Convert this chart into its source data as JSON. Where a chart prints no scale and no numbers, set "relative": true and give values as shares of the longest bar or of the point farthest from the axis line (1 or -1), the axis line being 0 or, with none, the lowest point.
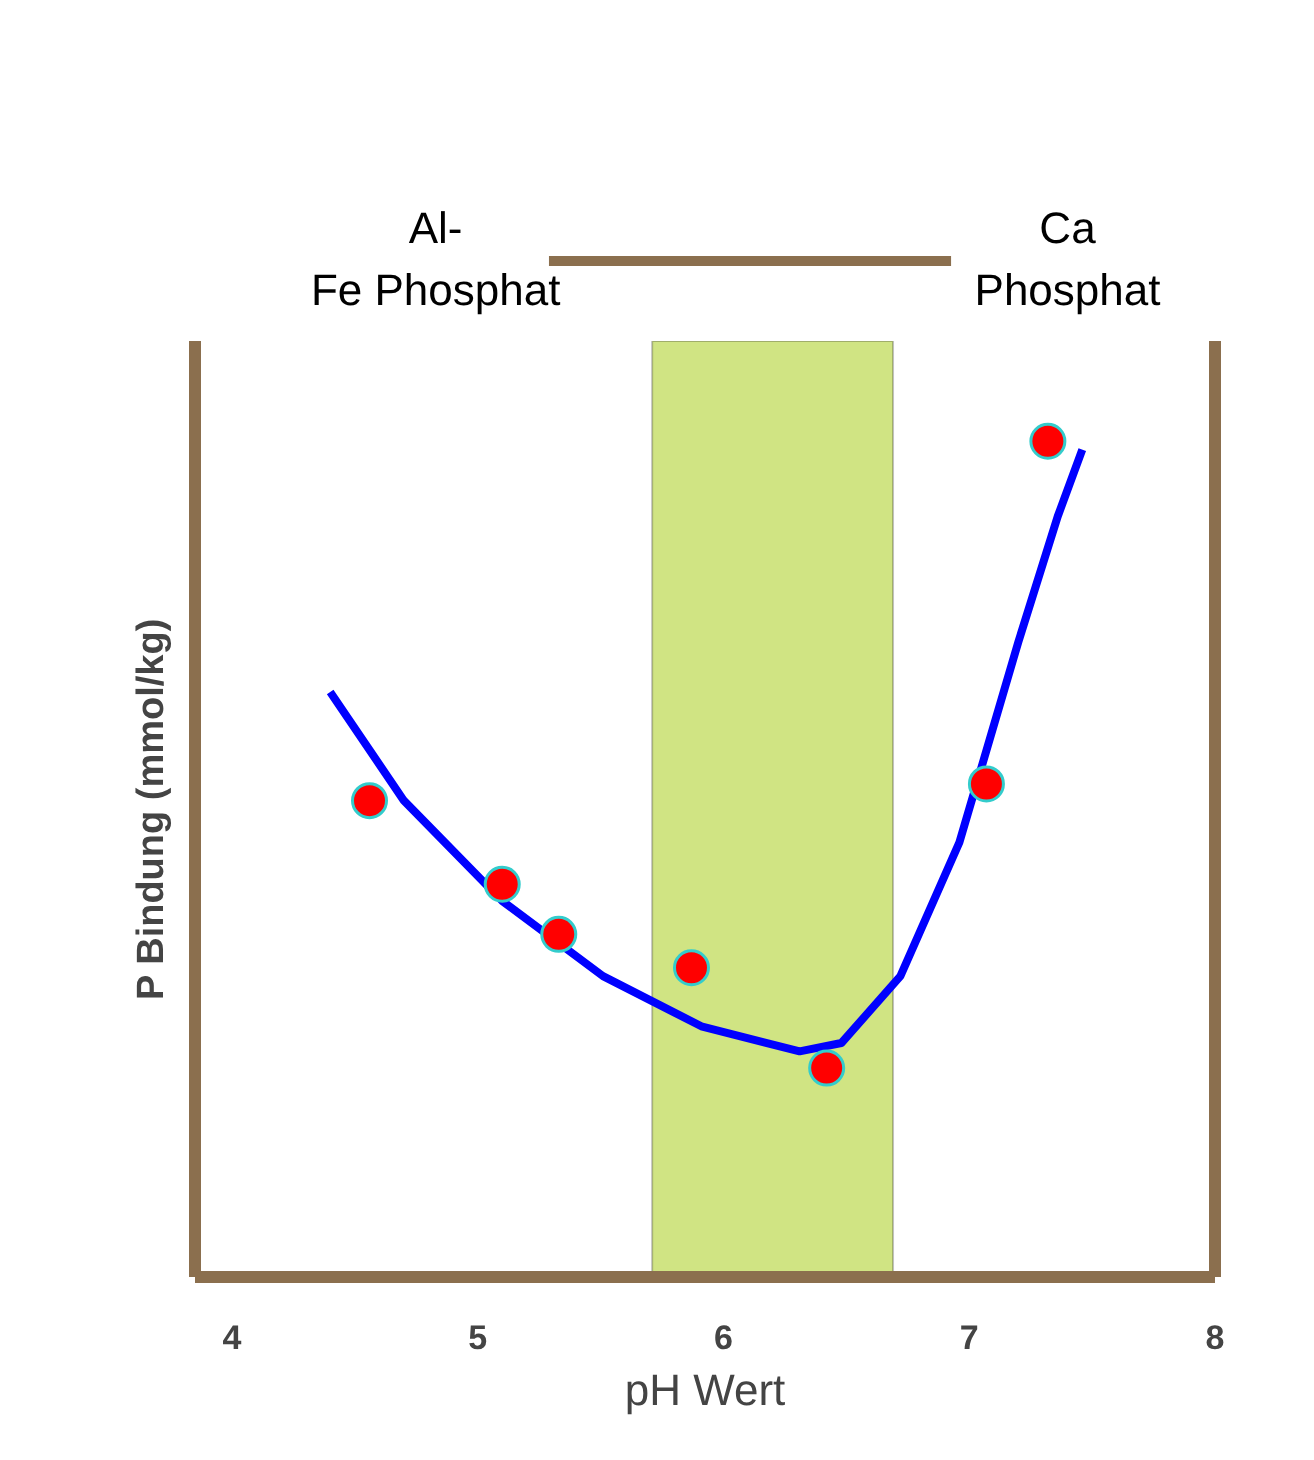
{
  "chart_data": {
    "type": "scatter",
    "xlabel": "pH Wert",
    "ylabel": "P Bindung (mmol/kg)",
    "xlim": [
      3.85,
      8.0
    ],
    "xticks": [
      4,
      5,
      6,
      7,
      8
    ],
    "relative": true,
    "grid": false,
    "annotations": [
      "Al-\nFe Phosphat",
      "Ca\nPhosphat"
    ],
    "bands": [
      {
        "axis": "x",
        "from": 5.71,
        "to": 6.69,
        "color": "#d0e483"
      }
    ],
    "series": [
      {
        "color": "#ff0000",
        "marker": "circle",
        "x": [
          4.56,
          5.1,
          5.33,
          5.87,
          6.42,
          7.07,
          7.32
        ],
        "values": [
          0.57,
          0.47,
          0.41,
          0.37,
          0.25,
          0.59,
          1.0
        ]
      },
      {
        "type": "line",
        "color": "#0000ff",
        "x": [
          4.4,
          4.7,
          5.1,
          5.51,
          5.91,
          6.31,
          6.48,
          6.72,
          6.96,
          7.2,
          7.36,
          7.46
        ],
        "values": [
          0.7,
          0.57,
          0.45,
          0.36,
          0.3,
          0.27,
          0.28,
          0.36,
          0.52,
          0.76,
          0.91,
          0.99
        ]
      }
    ]
  }
}
